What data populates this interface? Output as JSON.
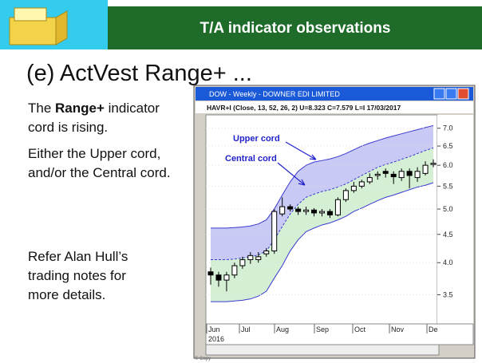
{
  "header": {
    "title": "T/A indicator observations"
  },
  "heading": "(e) ActVest Range+ ...",
  "notes": {
    "first": {
      "pre": "The ",
      "bold": "Range+",
      "post": " indicator",
      "line2": "cord is rising."
    },
    "second": [
      "Either the Upper cord,",
      "and/or the Central cord."
    ],
    "third": [
      "Refer Alan Hull’s",
      "trading notes for",
      "more details."
    ]
  },
  "window": {
    "title": "DOW - Weekly - DOWNER EDI LIMITED",
    "indicator": "HAVR+I (Close, 13, 52, 26, 2) U=8.323 C=7.579 L=I 17/03/2017",
    "annotations": [
      "Upper cord",
      "Central cord"
    ],
    "months": [
      "Jun",
      "Jul",
      "Aug",
      "Sep",
      "Oct",
      "Nov",
      "De"
    ],
    "year": "2016",
    "footer": "© Copy"
  },
  "chart_data": {
    "type": "candlestick",
    "log_scale": true,
    "ylim": [
      3.1,
      7.4
    ],
    "yticks": [
      {
        "value": 7,
        "label": "7.0"
      },
      6.5,
      {
        "value": 6,
        "label": "6.0"
      },
      5.5,
      {
        "value": 5,
        "label": "5.0"
      },
      4.5,
      {
        "value": 4,
        "label": "4.0"
      },
      3.5
    ],
    "open": [
      3.85,
      3.8,
      3.72,
      3.8,
      3.95,
      4.05,
      4.05,
      4.15,
      4.2,
      4.9,
      5.05,
      5.0,
      4.95,
      4.98,
      4.92,
      4.95,
      4.88,
      5.2,
      5.4,
      5.5,
      5.6,
      5.75,
      5.85,
      5.78,
      5.7,
      5.85,
      5.7,
      5.8,
      6.05
    ],
    "close": [
      3.8,
      3.72,
      3.8,
      3.95,
      4.05,
      4.12,
      4.1,
      4.2,
      4.95,
      5.05,
      5.0,
      4.95,
      4.98,
      4.92,
      4.95,
      4.88,
      5.2,
      5.4,
      5.5,
      5.6,
      5.7,
      5.78,
      5.8,
      5.72,
      5.85,
      5.75,
      5.85,
      6.0,
      6.05
    ],
    "high": [
      3.92,
      3.85,
      3.85,
      4.0,
      4.1,
      4.18,
      4.18,
      4.25,
      5.0,
      5.25,
      5.1,
      5.05,
      5.05,
      5.02,
      5.0,
      5.0,
      5.25,
      5.45,
      5.6,
      5.65,
      5.8,
      5.85,
      5.92,
      5.85,
      5.92,
      5.92,
      5.95,
      6.1,
      6.15
    ],
    "low": [
      3.65,
      3.62,
      3.55,
      3.75,
      3.9,
      3.98,
      4.0,
      4.1,
      4.15,
      4.85,
      4.95,
      4.88,
      4.88,
      4.85,
      4.85,
      4.82,
      4.85,
      5.15,
      5.35,
      5.45,
      5.55,
      5.65,
      5.7,
      5.55,
      5.62,
      5.45,
      5.6,
      5.75,
      5.95
    ],
    "bands": {
      "upper": [
        4.62,
        4.62,
        4.62,
        4.63,
        4.64,
        4.66,
        4.7,
        4.78,
        5.0,
        5.3,
        5.6,
        5.85,
        6.0,
        6.08,
        6.12,
        6.16,
        6.22,
        6.3,
        6.4,
        6.5,
        6.58,
        6.65,
        6.72,
        6.78,
        6.84,
        6.9,
        6.96,
        7.02,
        7.08
      ],
      "central": [
        4.05,
        4.05,
        4.05,
        4.06,
        4.08,
        4.1,
        4.13,
        4.2,
        4.4,
        4.65,
        4.9,
        5.1,
        5.25,
        5.32,
        5.38,
        5.42,
        5.48,
        5.55,
        5.65,
        5.75,
        5.85,
        5.95,
        6.02,
        6.08,
        6.15,
        6.22,
        6.3,
        6.38,
        6.45
      ],
      "lower": [
        3.4,
        3.4,
        3.4,
        3.41,
        3.42,
        3.44,
        3.48,
        3.55,
        3.75,
        3.95,
        4.2,
        4.4,
        4.55,
        4.62,
        4.68,
        4.72,
        4.78,
        4.85,
        4.95,
        5.02,
        5.1,
        5.18,
        5.25,
        5.3,
        5.36,
        5.42,
        5.48,
        5.52,
        5.58
      ]
    },
    "upper_color": "#c9c9f5",
    "central_color": "#d4efd4",
    "line_color": "#3a3ad0"
  }
}
